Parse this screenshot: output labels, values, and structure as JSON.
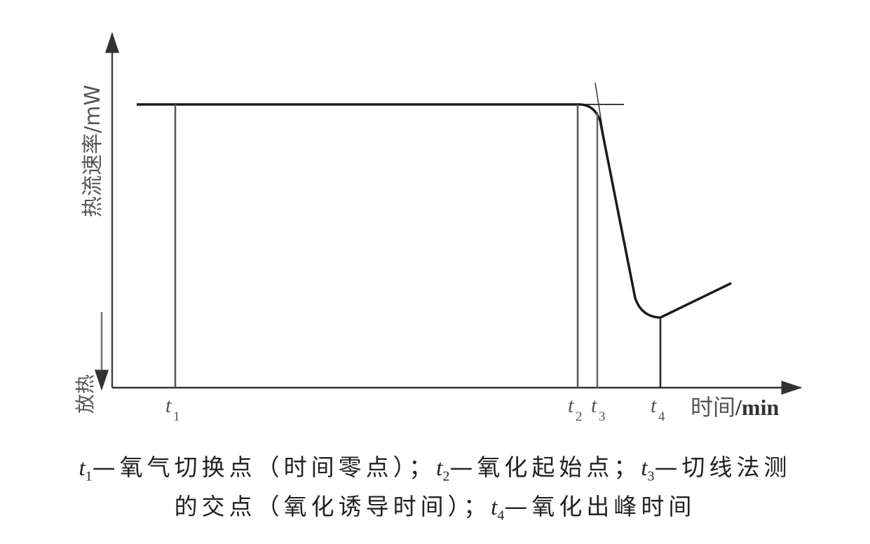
{
  "diagram": {
    "y_axis_label": "热流速率/mW",
    "exotherm_label": "放热",
    "x_axis_label_cn": "时间",
    "x_axis_label_unit": "/min",
    "markers": [
      {
        "symbol": "t",
        "sub": "1"
      },
      {
        "symbol": "t",
        "sub": "2"
      },
      {
        "symbol": "t",
        "sub": "3"
      },
      {
        "symbol": "t",
        "sub": "4"
      }
    ]
  },
  "caption": {
    "line1": [
      {
        "t": "t",
        "sub": "1",
        "text": "—氧气切换点（时间零点）；"
      },
      {
        "t": "t",
        "sub": "2",
        "text": "—氧化起始点；"
      },
      {
        "t": "t",
        "sub": "3",
        "text": "—切线法测"
      }
    ],
    "line2_prefix": "的交点（氧化诱导时间）；",
    "line2": [
      {
        "t": "t",
        "sub": "4",
        "text": "—氧化出峰时间"
      }
    ]
  }
}
